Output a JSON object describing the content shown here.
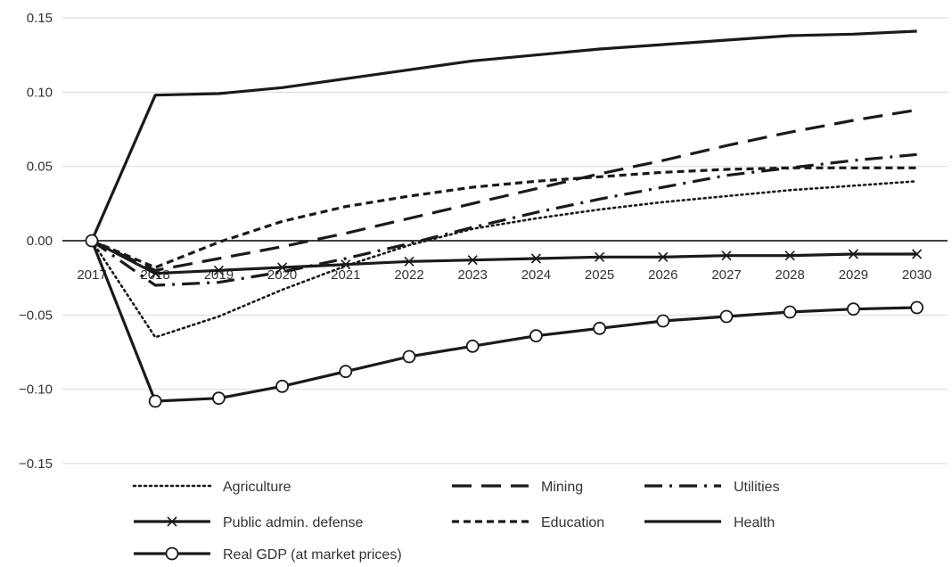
{
  "chart_data": {
    "type": "line",
    "title": "",
    "xlabel": "",
    "ylabel": "",
    "x": [
      2017,
      2018,
      2019,
      2020,
      2021,
      2022,
      2023,
      2024,
      2025,
      2026,
      2027,
      2028,
      2029,
      2030
    ],
    "x_tick_labels": [
      "2017",
      "2018",
      "2019",
      "2020",
      "2021",
      "2022",
      "2023",
      "2024",
      "2025",
      "2026",
      "2027",
      "2028",
      "2029",
      "2030"
    ],
    "ylim": [
      -0.15,
      0.15
    ],
    "y_ticks": [
      0.15,
      0.1,
      0.05,
      0.0,
      -0.05,
      -0.1,
      -0.15
    ],
    "y_tick_labels": [
      "0.15",
      "0.10",
      "0.05",
      "0.00",
      "−0.05",
      "−0.10",
      "−0.15"
    ],
    "grid": "horizontal",
    "legend_position": "bottom",
    "colors": {
      "series": "#1a1a1a",
      "grid": "#d9d9d9",
      "zero_line": "#000000",
      "text": "#333333"
    },
    "series": [
      {
        "name": "Agriculture",
        "style": "dotted",
        "marker": "none",
        "values": [
          0.0,
          -0.065,
          -0.051,
          -0.033,
          -0.017,
          -0.003,
          0.008,
          0.015,
          0.021,
          0.026,
          0.03,
          0.034,
          0.037,
          0.04
        ]
      },
      {
        "name": "Mining",
        "style": "long-dash",
        "marker": "none",
        "values": [
          0.0,
          -0.02,
          -0.012,
          -0.004,
          0.005,
          0.015,
          0.025,
          0.035,
          0.045,
          0.054,
          0.064,
          0.073,
          0.081,
          0.088
        ]
      },
      {
        "name": "Utilities",
        "style": "dash-dot",
        "marker": "none",
        "values": [
          0.0,
          -0.03,
          -0.028,
          -0.021,
          -0.012,
          -0.002,
          0.009,
          0.019,
          0.028,
          0.036,
          0.044,
          0.049,
          0.054,
          0.058
        ]
      },
      {
        "name": "Public admin. defense",
        "style": "solid",
        "marker": "x",
        "values": [
          0.0,
          -0.022,
          -0.02,
          -0.018,
          -0.016,
          -0.014,
          -0.013,
          -0.012,
          -0.011,
          -0.011,
          -0.01,
          -0.01,
          -0.009,
          -0.009
        ]
      },
      {
        "name": "Education",
        "style": "short-dash",
        "marker": "none",
        "values": [
          0.0,
          -0.018,
          -0.001,
          0.013,
          0.023,
          0.03,
          0.036,
          0.04,
          0.043,
          0.046,
          0.048,
          0.049,
          0.049,
          0.049
        ]
      },
      {
        "name": "Health",
        "style": "solid",
        "marker": "none",
        "values": [
          0.0,
          0.098,
          0.099,
          0.103,
          0.109,
          0.115,
          0.121,
          0.125,
          0.129,
          0.132,
          0.135,
          0.138,
          0.139,
          0.141
        ]
      },
      {
        "name": "Real GDP (at market prices)",
        "style": "solid",
        "marker": "circle",
        "values": [
          0.0,
          -0.108,
          -0.106,
          -0.098,
          -0.088,
          -0.078,
          -0.071,
          -0.064,
          -0.059,
          -0.054,
          -0.051,
          -0.048,
          -0.046,
          -0.045
        ]
      }
    ]
  }
}
